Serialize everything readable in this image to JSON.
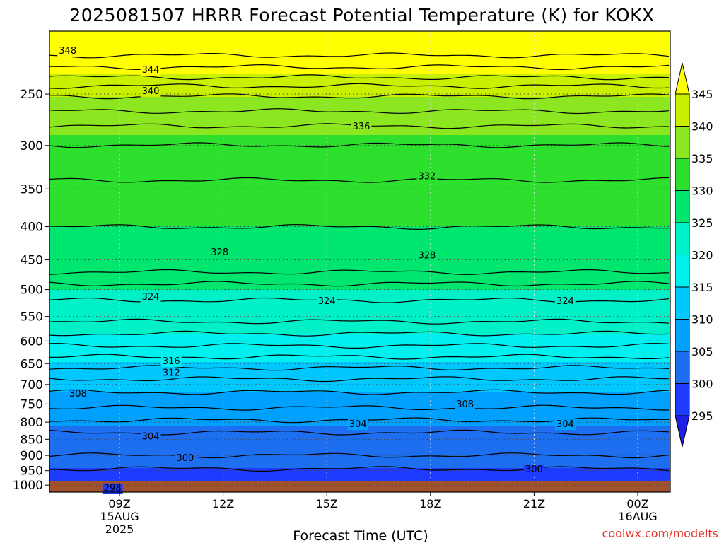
{
  "chart_data": {
    "type": "heatmap",
    "title": "2025081507 HRRR Forecast Potential Temperature (K) for KOKX",
    "xlabel": "Forecast Time (UTC)",
    "ylabel": "",
    "x_ticks": [
      {
        "hour": 0,
        "lines": [
          "09Z",
          "15AUG",
          "2025"
        ]
      },
      {
        "hour": 3,
        "lines": [
          "12Z"
        ]
      },
      {
        "hour": 6,
        "lines": [
          "15Z"
        ]
      },
      {
        "hour": 9,
        "lines": [
          "18Z"
        ]
      },
      {
        "hour": 12,
        "lines": [
          "21Z"
        ]
      },
      {
        "hour": 15,
        "lines": [
          "00Z",
          "16AUG"
        ]
      }
    ],
    "xlim": [
      -2,
      16
    ],
    "y_scale": "log",
    "y_reversed": true,
    "ylim": [
      1025,
      200
    ],
    "y_ticks": [
      250,
      300,
      350,
      400,
      450,
      500,
      550,
      600,
      650,
      700,
      750,
      800,
      850,
      900,
      950,
      1000
    ],
    "colorbar": {
      "levels": [
        295,
        300,
        305,
        310,
        315,
        320,
        325,
        330,
        335,
        340,
        345
      ],
      "colors": [
        "#1e1ee6",
        "#1e3cff",
        "#1e6ef0",
        "#00a0ff",
        "#00c8ff",
        "#00f0f0",
        "#00f0c8",
        "#00e66e",
        "#2de02d",
        "#8ce620",
        "#c8f000",
        "#ffff00"
      ],
      "labels": [
        "295",
        "300",
        "305",
        "310",
        "315",
        "320",
        "325",
        "330",
        "335",
        "340",
        "345"
      ]
    },
    "ground_color": "#a0522d",
    "contour_interval": 2,
    "profile": [
      {
        "p": 200,
        "theta": 350
      },
      {
        "p": 218,
        "theta": 348
      },
      {
        "p": 232,
        "theta": 345
      },
      {
        "p": 243,
        "theta": 342
      },
      {
        "p": 252,
        "theta": 340
      },
      {
        "p": 280,
        "theta": 336
      },
      {
        "p": 310,
        "theta": 333
      },
      {
        "p": 355,
        "theta": 331.5
      },
      {
        "p": 470,
        "theta": 328
      },
      {
        "p": 500,
        "theta": 325
      },
      {
        "p": 560,
        "theta": 322
      },
      {
        "p": 610,
        "theta": 318
      },
      {
        "p": 660,
        "theta": 314
      },
      {
        "p": 700,
        "theta": 311
      },
      {
        "p": 760,
        "theta": 308
      },
      {
        "p": 830,
        "theta": 304
      },
      {
        "p": 900,
        "theta": 302
      },
      {
        "p": 955,
        "theta": 299.5
      },
      {
        "p": 1010,
        "theta": 297.5
      },
      {
        "p": 1025,
        "theta": 297
      }
    ],
    "contour_labels": [
      {
        "value": "348",
        "hour": -1.5,
        "p": 214
      },
      {
        "value": "344",
        "hour": 0.9,
        "p": 229
      },
      {
        "value": "340",
        "hour": 0.9,
        "p": 247
      },
      {
        "value": "336",
        "hour": 7.0,
        "p": 280
      },
      {
        "value": "332",
        "hour": 8.9,
        "p": 334
      },
      {
        "value": "328",
        "hour": 2.9,
        "p": 437
      },
      {
        "value": "328",
        "hour": 8.9,
        "p": 442
      },
      {
        "value": "324",
        "hour": 0.9,
        "p": 512
      },
      {
        "value": "324",
        "hour": 6.0,
        "p": 520
      },
      {
        "value": "324",
        "hour": 12.9,
        "p": 520
      },
      {
        "value": "316",
        "hour": 1.5,
        "p": 643
      },
      {
        "value": "312",
        "hour": 1.5,
        "p": 670
      },
      {
        "value": "308",
        "hour": -1.2,
        "p": 722
      },
      {
        "value": "308",
        "hour": 10.0,
        "p": 749
      },
      {
        "value": "304",
        "hour": 0.9,
        "p": 840
      },
      {
        "value": "304",
        "hour": 6.9,
        "p": 804
      },
      {
        "value": "304",
        "hour": 12.9,
        "p": 804
      },
      {
        "value": "300",
        "hour": 1.9,
        "p": 907
      },
      {
        "value": "300",
        "hour": 12.0,
        "p": 944
      },
      {
        "value": "298",
        "hour": -0.2,
        "p": 1009
      }
    ],
    "grid": "dotted"
  },
  "credit": "coolwx.com/modelts"
}
